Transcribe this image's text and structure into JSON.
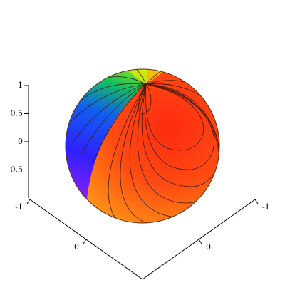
{
  "chart_data": {
    "type": "surface3d",
    "xlim": [
      -1,
      1
    ],
    "xticks": [
      -1,
      0
    ],
    "ylim": [
      -1,
      1
    ],
    "yticks": [
      -1,
      0
    ],
    "zlim": [
      -1,
      1
    ],
    "zticks": [
      1,
      0.5,
      0,
      -0.5
    ]
  }
}
